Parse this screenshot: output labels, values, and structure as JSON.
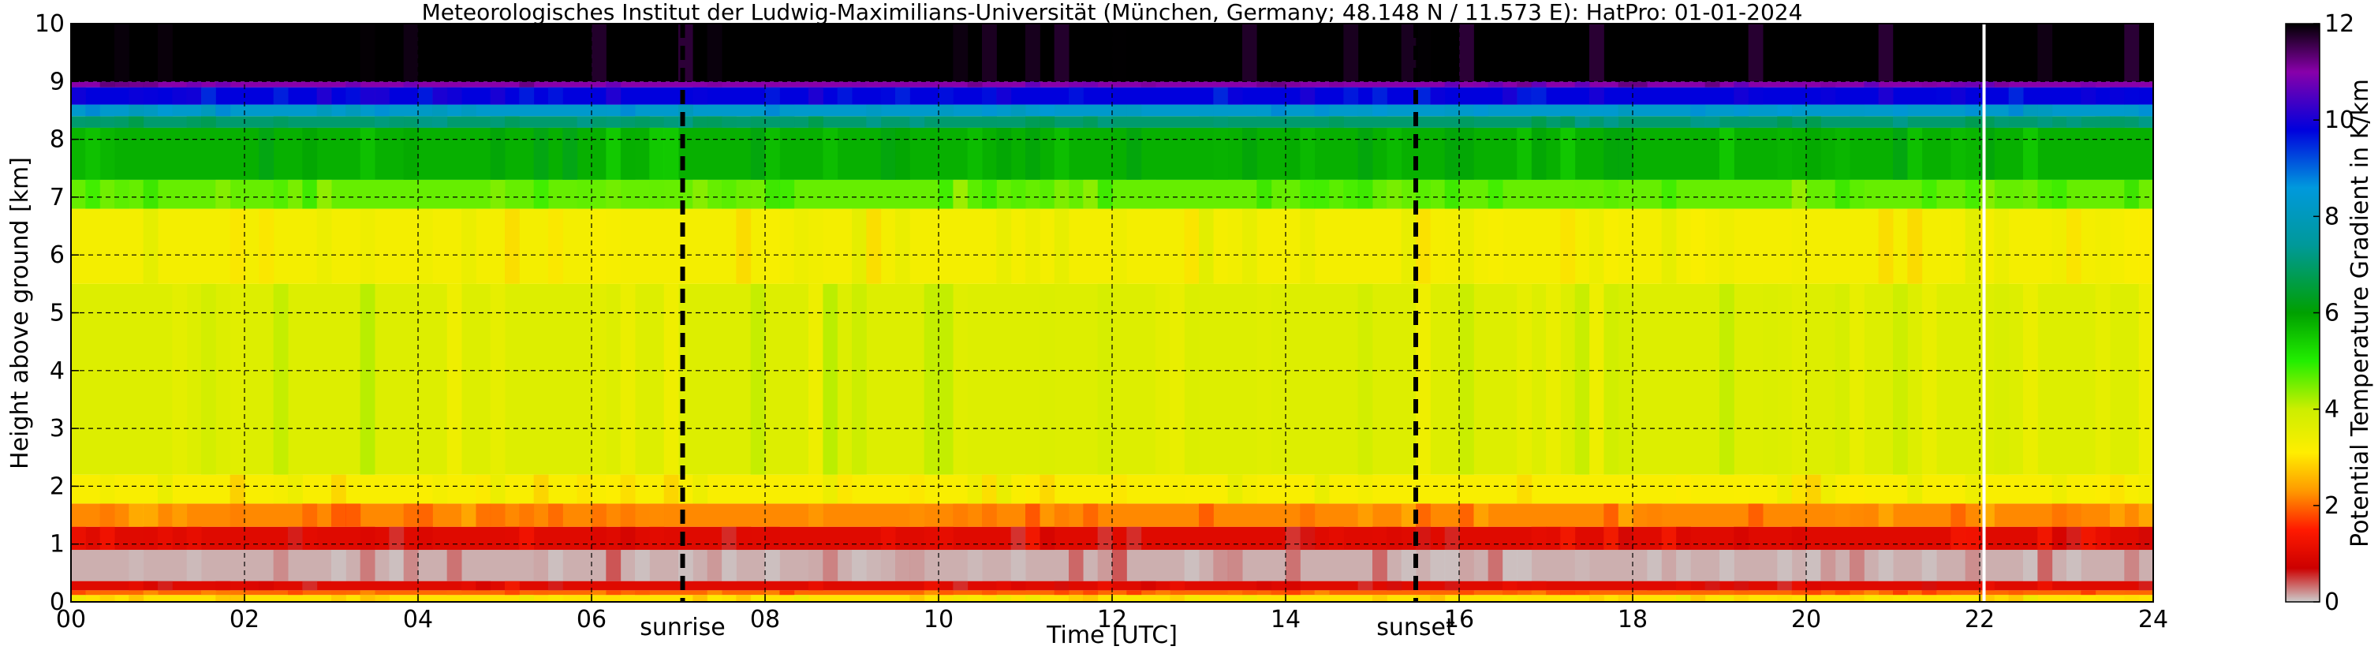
{
  "chart_data": {
    "type": "heatmap",
    "title": "Meteorologisches Institut der Ludwig-Maximilians-Universität (München, Germany; 48.148 N / 11.573 E):    HatPro: 01-01-2024",
    "xlabel": "Time [UTC]",
    "ylabel": "Height above ground [km]",
    "colorbar_label": "Potential Temperature Gradient in K/km",
    "xlim": [
      0,
      24
    ],
    "ylim": [
      0,
      10
    ],
    "clim": [
      0,
      12
    ],
    "x_ticks": [
      0,
      2,
      4,
      6,
      8,
      10,
      12,
      14,
      16,
      18,
      20,
      22,
      24
    ],
    "x_tick_labels": [
      "00",
      "02",
      "04",
      "06",
      "08",
      "10",
      "12",
      "14",
      "16",
      "18",
      "20",
      "22",
      "24"
    ],
    "y_ticks": [
      0,
      1,
      2,
      3,
      4,
      5,
      6,
      7,
      8,
      9,
      10
    ],
    "y_tick_labels": [
      "0",
      "1",
      "2",
      "3",
      "4",
      "5",
      "6",
      "7",
      "8",
      "9",
      "10"
    ],
    "colorbar_ticks": [
      0,
      2,
      4,
      6,
      8,
      10,
      12
    ],
    "colorbar_tick_labels": [
      "0",
      "2",
      "4",
      "6",
      "8",
      "10",
      "12"
    ],
    "grid": true,
    "annotations": [
      {
        "label": "sunrise",
        "x": 7.05,
        "style": "dashed"
      },
      {
        "label": "sunset",
        "x": 15.5,
        "style": "dashed"
      }
    ],
    "data_gap_marker_x": 22.05,
    "profile_bands": [
      {
        "z_from": 0.0,
        "z_to": 0.12,
        "value": 3.0
      },
      {
        "z_from": 0.12,
        "z_to": 0.2,
        "value": 2.0
      },
      {
        "z_from": 0.2,
        "z_to": 0.36,
        "value": 1.0
      },
      {
        "z_from": 0.36,
        "z_to": 0.9,
        "value": 0.1
      },
      {
        "z_from": 0.9,
        "z_to": 1.3,
        "value": 1.0
      },
      {
        "z_from": 1.3,
        "z_to": 1.7,
        "value": 2.2
      },
      {
        "z_from": 1.7,
        "z_to": 2.2,
        "value": 3.2
      },
      {
        "z_from": 2.2,
        "z_to": 5.5,
        "value": 3.7
      },
      {
        "z_from": 5.5,
        "z_to": 6.8,
        "value": 3.3
      },
      {
        "z_from": 6.8,
        "z_to": 7.3,
        "value": 4.6
      },
      {
        "z_from": 7.3,
        "z_to": 8.2,
        "value": 5.8
      },
      {
        "z_from": 8.2,
        "z_to": 8.4,
        "value": 7.0
      },
      {
        "z_from": 8.4,
        "z_to": 8.6,
        "value": 8.3
      },
      {
        "z_from": 8.6,
        "z_to": 8.9,
        "value": 9.8
      },
      {
        "z_from": 8.9,
        "z_to": 9.0,
        "value": 11.0
      },
      {
        "z_from": 9.0,
        "z_to": 10.0,
        "value": 12.0
      }
    ],
    "colormap": [
      {
        "value": 0,
        "color": "#cccccc"
      },
      {
        "value": 0.7,
        "color": "#cc0000"
      },
      {
        "value": 1.5,
        "color": "#ff1a00"
      },
      {
        "value": 2.3,
        "color": "#ff9900"
      },
      {
        "value": 3.1,
        "color": "#ffee00"
      },
      {
        "value": 4.0,
        "color": "#ccee00"
      },
      {
        "value": 5.0,
        "color": "#22ee00"
      },
      {
        "value": 6.0,
        "color": "#00a000"
      },
      {
        "value": 7.4,
        "color": "#009999"
      },
      {
        "value": 8.6,
        "color": "#0099dd"
      },
      {
        "value": 9.8,
        "color": "#0000dd"
      },
      {
        "value": 11.0,
        "color": "#8800aa"
      },
      {
        "value": 12.0,
        "color": "#000000"
      }
    ]
  }
}
